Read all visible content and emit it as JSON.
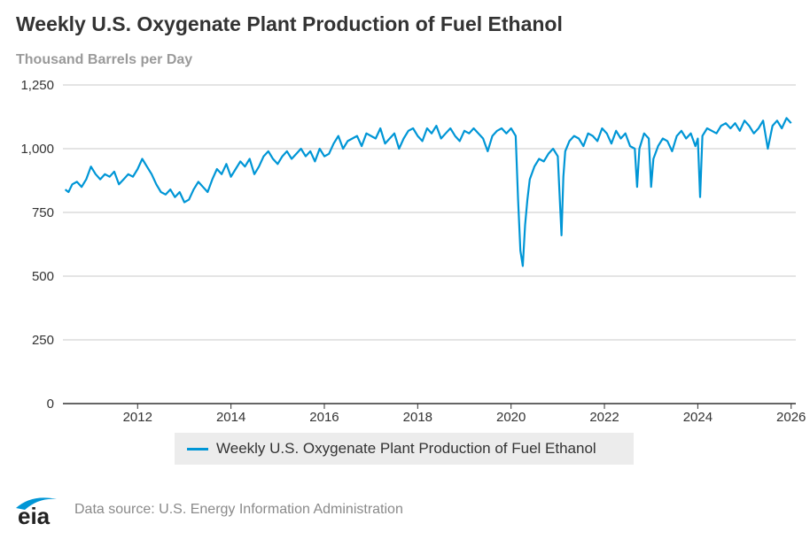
{
  "title": "Weekly U.S. Oxygenate Plant Production of Fuel Ethanol",
  "logo_text": "eia",
  "source_text": "Data source: U.S. Energy Information Administration",
  "colors": {
    "series": "#0096d6",
    "grid": "#c8c8c8",
    "axis": "#333333",
    "logo": "#0096d6"
  },
  "chart_data": {
    "type": "line",
    "title": "Weekly U.S. Oxygenate Plant Production of Fuel Ethanol",
    "ylabel": "Thousand Barrels per Day",
    "xlabel": "",
    "xlim": [
      2010.4,
      2026.1
    ],
    "ylim": [
      0,
      1250
    ],
    "y_ticks": [
      0,
      250,
      500,
      750,
      1000,
      1250
    ],
    "y_tick_labels": [
      "0",
      "250",
      "500",
      "750",
      "1,000",
      "1,250"
    ],
    "x_ticks": [
      2012,
      2014,
      2016,
      2018,
      2020,
      2022,
      2024,
      2026
    ],
    "x_tick_labels": [
      "2012",
      "2014",
      "2016",
      "2018",
      "2020",
      "2022",
      "2024",
      "2026"
    ],
    "grid": true,
    "legend_position": "bottom",
    "series": [
      {
        "name": "Weekly U.S. Oxygenate Plant Production of Fuel Ethanol",
        "x": [
          2010.45,
          2010.52,
          2010.6,
          2010.7,
          2010.8,
          2010.9,
          2011.0,
          2011.1,
          2011.2,
          2011.3,
          2011.4,
          2011.5,
          2011.6,
          2011.7,
          2011.8,
          2011.9,
          2012.0,
          2012.1,
          2012.2,
          2012.3,
          2012.4,
          2012.5,
          2012.6,
          2012.7,
          2012.8,
          2012.9,
          2013.0,
          2013.1,
          2013.2,
          2013.3,
          2013.4,
          2013.5,
          2013.6,
          2013.7,
          2013.8,
          2013.9,
          2014.0,
          2014.1,
          2014.2,
          2014.3,
          2014.4,
          2014.5,
          2014.6,
          2014.7,
          2014.8,
          2014.9,
          2015.0,
          2015.1,
          2015.2,
          2015.3,
          2015.4,
          2015.5,
          2015.6,
          2015.7,
          2015.8,
          2015.9,
          2016.0,
          2016.1,
          2016.2,
          2016.3,
          2016.4,
          2016.5,
          2016.6,
          2016.7,
          2016.8,
          2016.9,
          2017.0,
          2017.1,
          2017.2,
          2017.3,
          2017.4,
          2017.5,
          2017.6,
          2017.7,
          2017.8,
          2017.9,
          2018.0,
          2018.1,
          2018.2,
          2018.3,
          2018.4,
          2018.5,
          2018.6,
          2018.7,
          2018.8,
          2018.9,
          2019.0,
          2019.1,
          2019.2,
          2019.3,
          2019.4,
          2019.5,
          2019.6,
          2019.7,
          2019.8,
          2019.9,
          2020.0,
          2020.1,
          2020.15,
          2020.2,
          2020.25,
          2020.3,
          2020.35,
          2020.4,
          2020.5,
          2020.6,
          2020.7,
          2020.8,
          2020.9,
          2021.0,
          2021.08,
          2021.12,
          2021.16,
          2021.25,
          2021.35,
          2021.45,
          2021.55,
          2021.65,
          2021.75,
          2021.85,
          2021.95,
          2022.05,
          2022.15,
          2022.25,
          2022.35,
          2022.45,
          2022.55,
          2022.65,
          2022.7,
          2022.75,
          2022.85,
          2022.95,
          2023.0,
          2023.05,
          2023.15,
          2023.25,
          2023.35,
          2023.45,
          2023.55,
          2023.65,
          2023.75,
          2023.85,
          2023.95,
          2024.0,
          2024.05,
          2024.1,
          2024.2,
          2024.3,
          2024.4,
          2024.5,
          2024.6,
          2024.7,
          2024.8,
          2024.9,
          2025.0,
          2025.1,
          2025.2,
          2025.3,
          2025.4,
          2025.5,
          2025.6,
          2025.7,
          2025.8,
          2025.9,
          2026.0
        ],
        "values": [
          840,
          830,
          860,
          870,
          850,
          880,
          930,
          900,
          880,
          900,
          890,
          910,
          860,
          880,
          900,
          890,
          920,
          960,
          930,
          900,
          860,
          830,
          820,
          840,
          810,
          830,
          790,
          800,
          840,
          870,
          850,
          830,
          880,
          920,
          900,
          940,
          890,
          920,
          950,
          930,
          960,
          900,
          930,
          970,
          990,
          960,
          940,
          970,
          990,
          960,
          980,
          1000,
          970,
          990,
          950,
          1000,
          970,
          980,
          1020,
          1050,
          1000,
          1030,
          1040,
          1050,
          1010,
          1060,
          1050,
          1040,
          1080,
          1020,
          1040,
          1060,
          1000,
          1040,
          1070,
          1080,
          1050,
          1030,
          1080,
          1060,
          1090,
          1040,
          1060,
          1080,
          1050,
          1030,
          1070,
          1060,
          1080,
          1060,
          1040,
          990,
          1050,
          1070,
          1080,
          1060,
          1080,
          1050,
          800,
          600,
          540,
          700,
          800,
          880,
          930,
          960,
          950,
          980,
          1000,
          970,
          660,
          890,
          990,
          1030,
          1050,
          1040,
          1010,
          1060,
          1050,
          1030,
          1080,
          1060,
          1020,
          1070,
          1040,
          1060,
          1010,
          1000,
          850,
          1000,
          1060,
          1040,
          850,
          960,
          1010,
          1040,
          1030,
          990,
          1050,
          1070,
          1040,
          1060,
          1010,
          1040,
          810,
          1050,
          1080,
          1070,
          1060,
          1090,
          1100,
          1080,
          1100,
          1070,
          1110,
          1090,
          1060,
          1080,
          1110,
          1000,
          1090,
          1110,
          1080,
          1120,
          1100
        ]
      }
    ]
  }
}
